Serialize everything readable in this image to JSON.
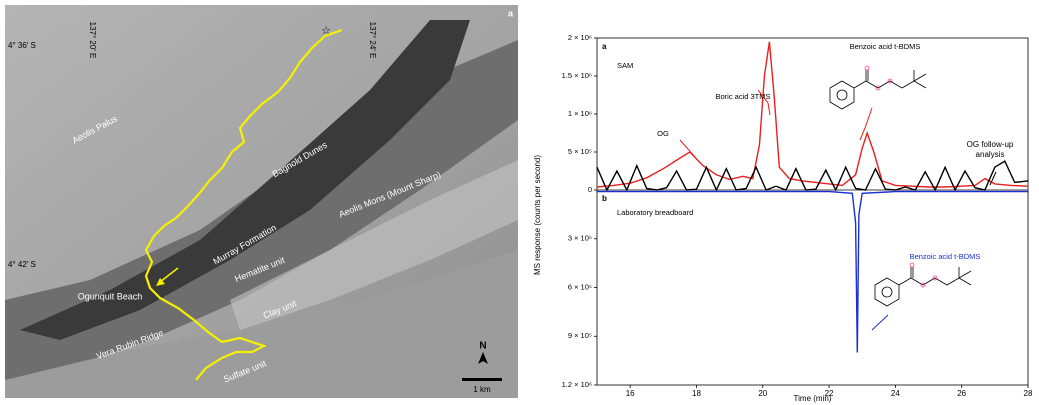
{
  "map": {
    "panel_label": "a",
    "coords": [
      "4° 36′ S",
      "137° 20′ E",
      "137° 24′ E",
      "4° 42′ S"
    ],
    "labels": [
      "Aeolis Palus",
      "Bagnold Dunes",
      "Murray Formation",
      "Aeolis Mons (Mount Sharp)",
      "Hematite unit",
      "Clay unit",
      "Ogunquit Beach",
      "Vera Rubin Ridge",
      "Sulfate unit"
    ],
    "north": "N",
    "scale_bar": "1 km"
  },
  "chart_data": [
    {
      "type": "line",
      "panel_label": "a",
      "title": "SAM",
      "ylabel": "MS response (counts per second)",
      "xlim": [
        15,
        28
      ],
      "ylim": [
        0,
        2000000
      ],
      "yticks": [
        0,
        {
          "value": 500000,
          "label": "5 × 10⁵"
        },
        {
          "value": 1000000,
          "label": "1 × 10⁶"
        },
        {
          "value": 1500000,
          "label": "1.5 × 10⁶"
        },
        {
          "value": 2000000,
          "label": "2 × 10⁶"
        }
      ],
      "annotations": [
        "Boric acid 3TMS",
        "Benzoic acid t-BDMS",
        "OG",
        "OG follow-up analysis"
      ],
      "series": [
        {
          "color": "#e8201e",
          "x": [
            15,
            15.5,
            16,
            16.5,
            17,
            17.5,
            17.8,
            18.2,
            18.6,
            19,
            19.4,
            19.7,
            19.9,
            20.05,
            20.2,
            20.35,
            20.5,
            20.8,
            21.2,
            21.6,
            22,
            22.4,
            22.8,
            23,
            23.15,
            23.35,
            23.6,
            24,
            24.5,
            25,
            25.5,
            26,
            26.4,
            26.7,
            27,
            27.5,
            28
          ],
          "values": [
            40000,
            60000,
            90000,
            160000,
            280000,
            420000,
            500000,
            320000,
            200000,
            140000,
            180000,
            150000,
            600000,
            1500000,
            1950000,
            1200000,
            300000,
            150000,
            120000,
            100000,
            80000,
            60000,
            200000,
            550000,
            750000,
            500000,
            120000,
            60000,
            50000,
            40000,
            40000,
            50000,
            60000,
            150000,
            80000,
            60000,
            50000
          ]
        },
        {
          "color": "#000000",
          "x": [
            15,
            15.3,
            15.6,
            15.9,
            16.2,
            16.5,
            16.8,
            17.1,
            17.4,
            17.7,
            18,
            18.3,
            18.6,
            18.9,
            19.2,
            19.5,
            19.8,
            20.1,
            20.4,
            20.7,
            21,
            21.3,
            21.6,
            21.9,
            22.2,
            22.5,
            22.8,
            23.1,
            23.4,
            23.7,
            24,
            24.3,
            24.6,
            24.9,
            25.2,
            25.5,
            25.8,
            26.1,
            26.4,
            26.7,
            27,
            27.3,
            27.6,
            28
          ],
          "values": [
            300000,
            0,
            250000,
            0,
            320000,
            20000,
            0,
            30000,
            250000,
            0,
            10000,
            300000,
            0,
            280000,
            0,
            20000,
            300000,
            0,
            50000,
            0,
            280000,
            0,
            10000,
            260000,
            0,
            300000,
            20000,
            0,
            280000,
            10000,
            0,
            40000,
            0,
            240000,
            0,
            300000,
            0,
            250000,
            30000,
            0,
            300000,
            380000,
            100000,
            120000
          ]
        }
      ]
    },
    {
      "type": "line",
      "panel_label": "b",
      "title": "Laboratory breadboard",
      "inverted": true,
      "xlabel": "Time (min)",
      "xlim": [
        15,
        28
      ],
      "xticks": [
        16,
        18,
        20,
        22,
        24,
        26,
        28
      ],
      "ylim": [
        0,
        1200000
      ],
      "yticks": [
        {
          "value": 300000,
          "label": "3 × 10⁵"
        },
        {
          "value": 600000,
          "label": "6 × 10⁵"
        },
        {
          "value": 900000,
          "label": "9 × 10⁵"
        },
        {
          "value": 1200000,
          "label": "1.2 × 10⁶"
        }
      ],
      "annotations": [
        "Benzoic acid t-BDMS"
      ],
      "series": [
        {
          "color": "#1a2fd6",
          "x": [
            15,
            22,
            22.7,
            22.8,
            22.85,
            22.9,
            23,
            24,
            28
          ],
          "values": [
            10000,
            10000,
            20000,
            200000,
            1000000,
            150000,
            20000,
            10000,
            10000
          ]
        }
      ]
    }
  ]
}
